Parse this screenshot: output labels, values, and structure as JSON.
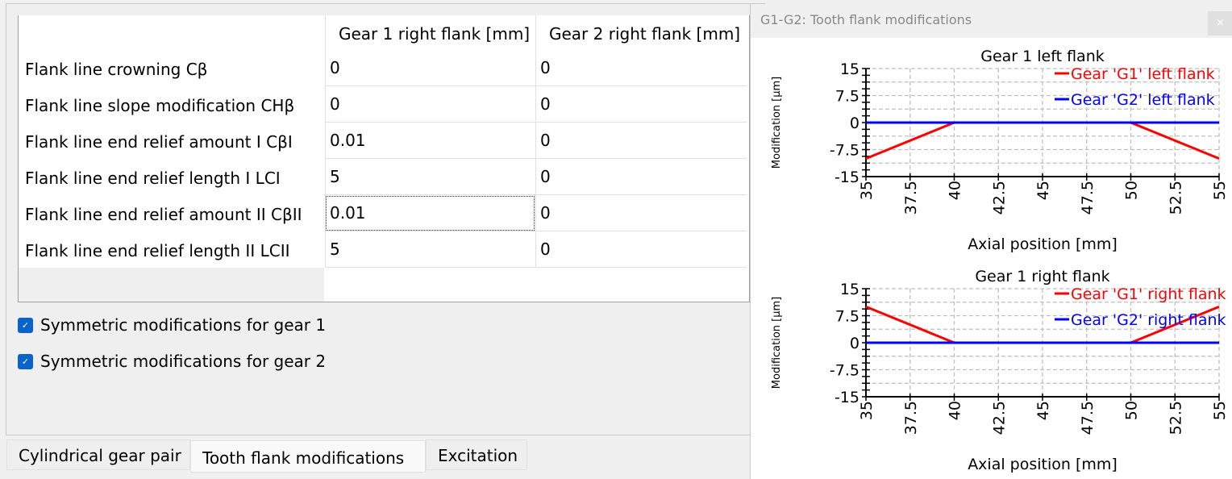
{
  "table": {
    "headers": [
      "Gear 1 right flank [mm]",
      "Gear 2 right flank [mm]"
    ],
    "rows": [
      {
        "label": "Flank line crowning Cβ",
        "g1": "0",
        "g2": "0"
      },
      {
        "label": "Flank line slope modification CHβ",
        "g1": "0",
        "g2": "0"
      },
      {
        "label": "Flank line end relief amount I CβI",
        "g1": "0.01",
        "g2": "0"
      },
      {
        "label": "Flank line end relief length I LCI",
        "g1": "5",
        "g2": "0"
      },
      {
        "label": "Flank line end relief amount II CβII",
        "g1": "0.01",
        "g2": "0"
      },
      {
        "label": "Flank line end relief length II LCII",
        "g1": "5",
        "g2": "0"
      }
    ]
  },
  "checkboxes": [
    {
      "label": "Symmetric modifications for gear 1",
      "checked": true
    },
    {
      "label": "Symmetric modifications for gear 2",
      "checked": true
    }
  ],
  "tabs": [
    {
      "label": "Cylindrical gear pair",
      "active": false
    },
    {
      "label": "Tooth flank modifications",
      "active": true
    },
    {
      "label": "Excitation",
      "active": false
    }
  ],
  "dialog": {
    "title": "G1-G2: Tooth flank modifications",
    "close_label": "×"
  },
  "chart_data": [
    {
      "type": "line",
      "title": "Gear 1 left flank",
      "xlabel": "Axial position [mm]",
      "ylabel": "Modification [µm]",
      "xlim": [
        35,
        55
      ],
      "ylim": [
        -15,
        15
      ],
      "xticks": [
        "35",
        "37.5",
        "40",
        "42.5",
        "45",
        "47.5",
        "50",
        "52.5",
        "55"
      ],
      "yticks": [
        "15",
        "7.5",
        "0",
        "-7.5",
        "-15"
      ],
      "grid": true,
      "legend": "top-right",
      "series": [
        {
          "name": "Gear 'G1' left flank",
          "color": "#ff0000",
          "x": [
            35,
            40,
            50,
            55
          ],
          "y": [
            -10,
            0,
            0,
            -10
          ]
        },
        {
          "name": "Gear 'G2' left flank",
          "color": "#0000ff",
          "x": [
            35,
            55
          ],
          "y": [
            0,
            0
          ]
        }
      ]
    },
    {
      "type": "line",
      "title": "Gear 1 right flank",
      "xlabel": "Axial position [mm]",
      "ylabel": "Modification [µm]",
      "xlim": [
        35,
        55
      ],
      "ylim": [
        -15,
        15
      ],
      "xticks": [
        "35",
        "37.5",
        "40",
        "42.5",
        "45",
        "47.5",
        "50",
        "52.5",
        "55"
      ],
      "yticks": [
        "15",
        "7.5",
        "0",
        "-7.5",
        "-15"
      ],
      "grid": true,
      "legend": "top-right",
      "series": [
        {
          "name": "Gear 'G1' right flank",
          "color": "#ff0000",
          "x": [
            35,
            40,
            50,
            55
          ],
          "y": [
            10,
            0,
            0,
            10
          ]
        },
        {
          "name": "Gear 'G2' right flank",
          "color": "#0000ff",
          "x": [
            35,
            55
          ],
          "y": [
            0,
            0
          ]
        }
      ]
    }
  ]
}
